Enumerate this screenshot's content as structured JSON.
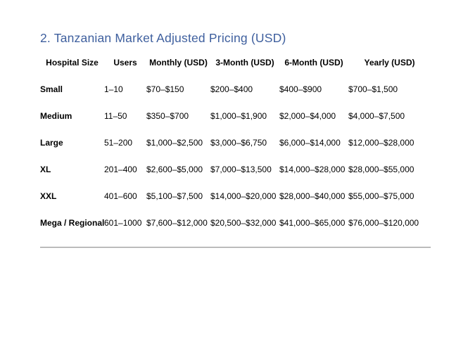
{
  "page": {
    "title": "2. Tanzanian Market Adjusted Pricing (USD)",
    "title_color": "#3e5f9e"
  },
  "table": {
    "columns": [
      "Hospital Size",
      "Users",
      "Monthly (USD)",
      "3-Month (USD)",
      "6-Month (USD)",
      "Yearly (USD)"
    ],
    "rows": [
      [
        "Small",
        "1–10",
        "$70–$150",
        "$200–$400",
        "$400–$900",
        "$700–$1,500"
      ],
      [
        "Medium",
        "11–50",
        "$350–$700",
        "$1,000–$1,900",
        "$2,000–$4,000",
        "$4,000–$7,500"
      ],
      [
        "Large",
        "51–200",
        "$1,000–$2,500",
        "$3,000–$6,750",
        "$6,000–$14,000",
        "$12,000–$28,000"
      ],
      [
        "XL",
        "201–400",
        "$2,600–$5,000",
        "$7,000–$13,500",
        "$14,000–$28,000",
        "$28,000–$55,000"
      ],
      [
        "XXL",
        "401–600",
        "$5,100–$7,500",
        "$14,000–$20,000",
        "$28,000–$40,000",
        "$55,000–$75,000"
      ],
      [
        "Mega / Regional",
        "601–1000",
        "$7,600–$12,000",
        "$20,500–$32,000",
        "$41,000–$65,000",
        "$76,000–$120,000"
      ]
    ]
  }
}
